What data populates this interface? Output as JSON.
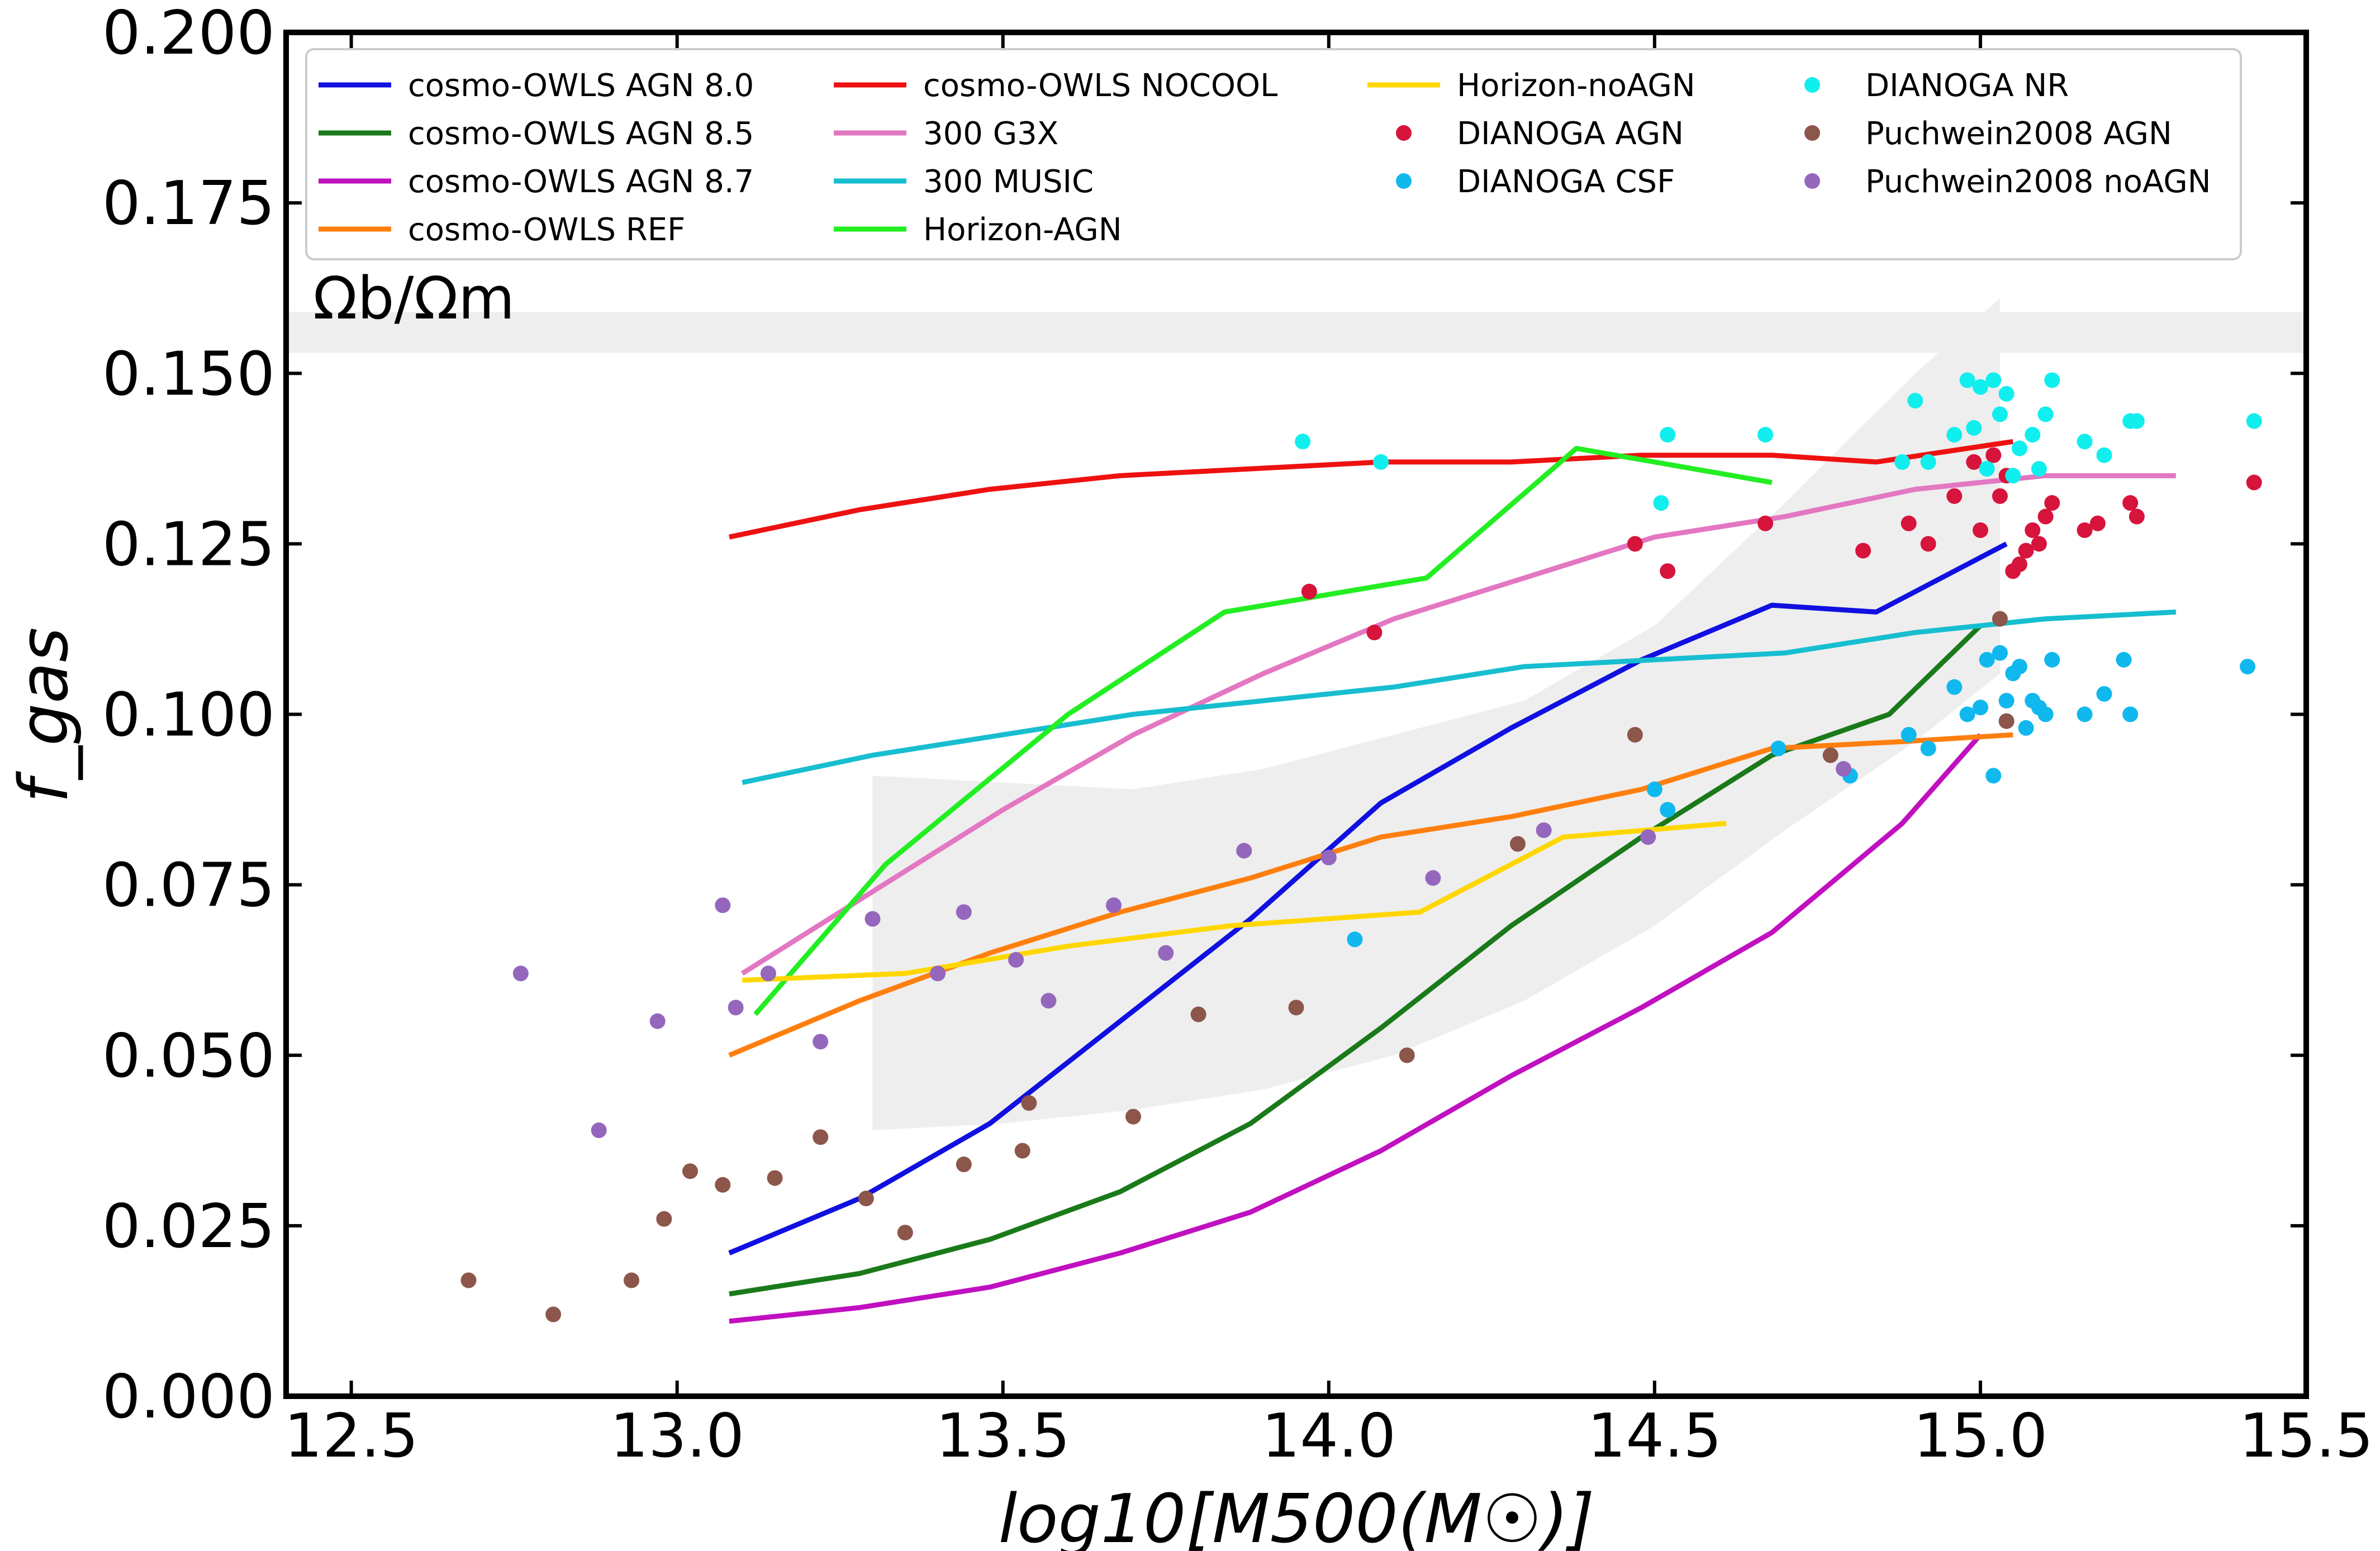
{
  "chart_data": {
    "type": "line",
    "title": "",
    "xlabel": "log10[M500(M☉)]",
    "ylabel": "f_gas",
    "xlim": [
      12.4,
      15.5
    ],
    "ylim": [
      0.0,
      0.2
    ],
    "xticks": [
      12.5,
      13.0,
      13.5,
      14.0,
      14.5,
      15.0,
      15.5
    ],
    "xtick_labels": [
      "12.5",
      "13.0",
      "13.5",
      "14.0",
      "14.5",
      "15.0",
      "15.5"
    ],
    "yticks": [
      0.0,
      0.025,
      0.05,
      0.075,
      0.1,
      0.125,
      0.15,
      0.175,
      0.2
    ],
    "ytick_labels": [
      "0.000",
      "0.025",
      "0.050",
      "0.075",
      "0.100",
      "0.125",
      "0.150",
      "0.175",
      "0.200"
    ],
    "grid": false,
    "legend_position": "top",
    "annotation": {
      "text": "Ωb/Ωm",
      "y_band": [
        0.153,
        0.159
      ]
    },
    "shaded_region": {
      "x": [
        13.3,
        13.5,
        13.7,
        13.9,
        14.1,
        14.3,
        14.5,
        14.7,
        14.9,
        15.03
      ],
      "upper": [
        0.091,
        0.09,
        0.089,
        0.092,
        0.097,
        0.102,
        0.113,
        0.131,
        0.15,
        0.161
      ],
      "lower": [
        0.039,
        0.04,
        0.042,
        0.045,
        0.05,
        0.058,
        0.069,
        0.083,
        0.096,
        0.106
      ]
    },
    "series": [
      {
        "name": "cosmo-OWLS AGN 8.0",
        "kind": "line",
        "color": "#1010e0",
        "x": [
          13.08,
          13.28,
          13.48,
          13.68,
          13.88,
          14.08,
          14.28,
          14.48,
          14.68,
          14.84,
          15.04
        ],
        "y": [
          0.021,
          0.029,
          0.04,
          0.055,
          0.07,
          0.087,
          0.098,
          0.108,
          0.116,
          0.115,
          0.125
        ]
      },
      {
        "name": "cosmo-OWLS AGN 8.5",
        "kind": "line",
        "color": "#1a7a1a",
        "x": [
          13.08,
          13.28,
          13.48,
          13.68,
          13.88,
          14.08,
          14.28,
          14.48,
          14.68,
          14.86,
          15.0
        ],
        "y": [
          0.015,
          0.018,
          0.023,
          0.03,
          0.04,
          0.054,
          0.069,
          0.082,
          0.094,
          0.1,
          0.113
        ]
      },
      {
        "name": "cosmo-OWLS AGN 8.7",
        "kind": "line",
        "color": "#c010c0",
        "x": [
          13.08,
          13.28,
          13.48,
          13.68,
          13.88,
          14.08,
          14.28,
          14.48,
          14.68,
          14.88,
          15.0
        ],
        "y": [
          0.011,
          0.013,
          0.016,
          0.021,
          0.027,
          0.036,
          0.047,
          0.057,
          0.068,
          0.084,
          0.097
        ]
      },
      {
        "name": "cosmo-OWLS REF",
        "kind": "line",
        "color": "#ff7f0e",
        "x": [
          13.08,
          13.28,
          13.48,
          13.68,
          13.88,
          14.08,
          14.28,
          14.48,
          14.68,
          14.88,
          15.05
        ],
        "y": [
          0.05,
          0.058,
          0.065,
          0.071,
          0.076,
          0.082,
          0.085,
          0.089,
          0.095,
          0.096,
          0.097
        ]
      },
      {
        "name": "cosmo-OWLS NOCOOL",
        "kind": "line",
        "color": "#ee1111",
        "x": [
          13.08,
          13.28,
          13.48,
          13.68,
          13.88,
          14.08,
          14.28,
          14.48,
          14.68,
          14.84,
          15.05
        ],
        "y": [
          0.126,
          0.13,
          0.133,
          0.135,
          0.136,
          0.137,
          0.137,
          0.138,
          0.138,
          0.137,
          0.14
        ]
      },
      {
        "name": "300 G3X",
        "kind": "line",
        "color": "#e377c2",
        "x": [
          13.1,
          13.3,
          13.5,
          13.7,
          13.9,
          14.1,
          14.3,
          14.5,
          14.7,
          14.9,
          15.1,
          15.3
        ],
        "y": [
          0.062,
          0.074,
          0.086,
          0.097,
          0.106,
          0.114,
          0.12,
          0.126,
          0.129,
          0.133,
          0.135,
          0.135
        ]
      },
      {
        "name": "300 MUSIC",
        "kind": "line",
        "color": "#17becf",
        "x": [
          13.1,
          13.3,
          13.5,
          13.7,
          13.9,
          14.1,
          14.3,
          14.5,
          14.7,
          14.9,
          15.1,
          15.3
        ],
        "y": [
          0.09,
          0.094,
          0.097,
          0.1,
          0.102,
          0.104,
          0.107,
          0.108,
          0.109,
          0.112,
          0.114,
          0.115
        ]
      },
      {
        "name": "Horizon-AGN",
        "kind": "line",
        "color": "#22ee22",
        "x": [
          13.12,
          13.32,
          13.6,
          13.84,
          14.15,
          14.38,
          14.68
        ],
        "y": [
          0.056,
          0.078,
          0.1,
          0.115,
          0.12,
          0.139,
          0.134
        ]
      },
      {
        "name": "Horizon-noAGN",
        "kind": "line",
        "color": "#ffd700",
        "x": [
          13.1,
          13.35,
          13.6,
          13.85,
          14.14,
          14.36,
          14.61
        ],
        "y": [
          0.061,
          0.062,
          0.066,
          0.069,
          0.071,
          0.082,
          0.084
        ]
      },
      {
        "name": "DIANOGA AGN",
        "kind": "scatter",
        "color": "#d6143c",
        "x": [
          13.97,
          14.07,
          14.47,
          14.52,
          14.67,
          14.82,
          14.89,
          14.92,
          14.96,
          14.99,
          15.0,
          15.02,
          15.03,
          15.04,
          15.05,
          15.06,
          15.07,
          15.08,
          15.09,
          15.1,
          15.11,
          15.16,
          15.18,
          15.23,
          15.24,
          15.42
        ],
        "y": [
          0.118,
          0.112,
          0.125,
          0.121,
          0.128,
          0.124,
          0.128,
          0.125,
          0.132,
          0.137,
          0.127,
          0.138,
          0.132,
          0.135,
          0.121,
          0.122,
          0.124,
          0.127,
          0.125,
          0.129,
          0.131,
          0.127,
          0.128,
          0.131,
          0.129,
          0.134
        ]
      },
      {
        "name": "DIANOGA CSF",
        "kind": "scatter",
        "color": "#10b8ee",
        "x": [
          14.04,
          14.5,
          14.52,
          14.69,
          14.8,
          14.89,
          14.92,
          14.96,
          14.98,
          15.0,
          15.01,
          15.02,
          15.03,
          15.04,
          15.05,
          15.06,
          15.07,
          15.08,
          15.09,
          15.1,
          15.11,
          15.16,
          15.19,
          15.22,
          15.23,
          15.41
        ],
        "y": [
          0.067,
          0.089,
          0.086,
          0.095,
          0.091,
          0.097,
          0.095,
          0.104,
          0.1,
          0.101,
          0.108,
          0.091,
          0.109,
          0.102,
          0.106,
          0.107,
          0.098,
          0.102,
          0.101,
          0.1,
          0.108,
          0.1,
          0.103,
          0.108,
          0.1,
          0.107
        ]
      },
      {
        "name": "DIANOGA NR",
        "kind": "scatter",
        "color": "#11eeee",
        "x": [
          13.96,
          14.08,
          14.51,
          14.52,
          14.67,
          14.88,
          14.9,
          14.92,
          14.96,
          14.98,
          14.99,
          15.0,
          15.01,
          15.02,
          15.03,
          15.04,
          15.05,
          15.06,
          15.08,
          15.09,
          15.1,
          15.11,
          15.16,
          15.19,
          15.23,
          15.24,
          15.42
        ],
        "y": [
          0.14,
          0.137,
          0.131,
          0.141,
          0.141,
          0.137,
          0.146,
          0.137,
          0.141,
          0.149,
          0.142,
          0.148,
          0.136,
          0.149,
          0.144,
          0.147,
          0.135,
          0.139,
          0.141,
          0.136,
          0.144,
          0.149,
          0.14,
          0.138,
          0.143,
          0.143,
          0.143
        ]
      },
      {
        "name": "Puchwein2008 AGN",
        "kind": "scatter",
        "color": "#8c564b",
        "x": [
          12.68,
          12.81,
          12.93,
          12.98,
          13.02,
          13.07,
          13.15,
          13.22,
          13.29,
          13.35,
          13.44,
          13.53,
          13.54,
          13.7,
          13.8,
          13.95,
          14.12,
          14.29,
          14.47,
          14.77,
          15.03,
          15.04
        ],
        "y": [
          0.017,
          0.012,
          0.017,
          0.026,
          0.033,
          0.031,
          0.032,
          0.038,
          0.029,
          0.024,
          0.034,
          0.036,
          0.043,
          0.041,
          0.056,
          0.057,
          0.05,
          0.081,
          0.097,
          0.094,
          0.114,
          0.099
        ]
      },
      {
        "name": "Puchwein2008 noAGN",
        "kind": "scatter",
        "color": "#9467bd",
        "x": [
          12.76,
          12.88,
          12.97,
          13.07,
          13.09,
          13.14,
          13.22,
          13.3,
          13.4,
          13.44,
          13.52,
          13.57,
          13.67,
          13.75,
          13.87,
          14.0,
          14.16,
          14.33,
          14.49,
          14.79
        ],
        "y": [
          0.062,
          0.039,
          0.055,
          0.072,
          0.057,
          0.062,
          0.052,
          0.07,
          0.062,
          0.071,
          0.064,
          0.058,
          0.072,
          0.065,
          0.08,
          0.079,
          0.076,
          0.083,
          0.082,
          0.092
        ]
      }
    ]
  }
}
